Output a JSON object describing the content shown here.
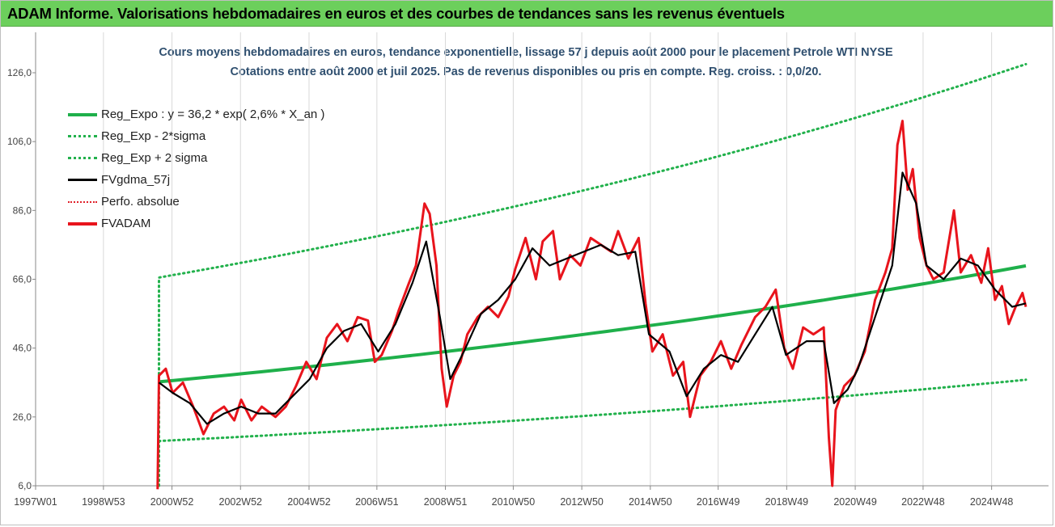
{
  "banner": {
    "title": "ADAM Informe. Valorisations hebdomadaires en euros et des courbes de tendances sans les revenus éventuels"
  },
  "colors": {
    "banner_bg": "#6ccf5c",
    "reg_expo": "#1fb04b",
    "sigma": "#22b14c",
    "fvgdma": "#000000",
    "perfo": "#e0202a",
    "fvadam": "#e8141c",
    "grid": "#d9d9d9"
  },
  "chart_data": {
    "type": "line",
    "title": "Cours moyens hebdomadaires en euros, tendance exponentielle, lissage 57 j depuis août 2000 pour le placement Petrole WTI NYSE",
    "subtitle": "Cotations entre août 2000 et juil 2025. Pas de revenus disponibles ou pris en compte. Reg. croiss. : 0,0/20.",
    "xlabel": "",
    "ylabel": "",
    "ylim": [
      6,
      126
    ],
    "yticks": [
      "6,0",
      "26,0",
      "46,0",
      "66,0",
      "86,0",
      "106,0",
      "126,0"
    ],
    "xlim": [
      1997.0,
      2025.9
    ],
    "xticks": [
      {
        "t": 1997.0,
        "label": "1997W01"
      },
      {
        "t": 1998.98,
        "label": "1998W53"
      },
      {
        "t": 2000.98,
        "label": "2000W52"
      },
      {
        "t": 2002.98,
        "label": "2002W52"
      },
      {
        "t": 2004.98,
        "label": "2004W52"
      },
      {
        "t": 2006.96,
        "label": "2006W51"
      },
      {
        "t": 2008.96,
        "label": "2008W51"
      },
      {
        "t": 2010.94,
        "label": "2010W50"
      },
      {
        "t": 2012.94,
        "label": "2012W50"
      },
      {
        "t": 2014.94,
        "label": "2014W50"
      },
      {
        "t": 2016.92,
        "label": "2016W49"
      },
      {
        "t": 2018.92,
        "label": "2018W49"
      },
      {
        "t": 2020.92,
        "label": "2020W49"
      },
      {
        "t": 2022.9,
        "label": "2022W48"
      },
      {
        "t": 2024.9,
        "label": "2024W48"
      }
    ],
    "grid": "vertical",
    "legend_position": "top-left",
    "series": [
      {
        "name": "Reg_Expo : y = 36,2 * exp( 2,6% *  X_an )",
        "key": "reg",
        "style": "solid-thick",
        "points": [
          [
            2000.6,
            36.2
          ],
          [
            2025.9,
            69.9
          ]
        ]
      },
      {
        "name": "Reg_Exp - 2*sigma",
        "key": "lo",
        "style": "dotted",
        "points": [
          [
            2000.6,
            19.0
          ],
          [
            2025.9,
            36.8
          ]
        ]
      },
      {
        "name": "Reg_Exp + 2 sigma",
        "key": "hi",
        "style": "dotted",
        "points": [
          [
            2000.6,
            6.0
          ],
          [
            2000.6,
            66.5
          ],
          [
            2025.9,
            128.5
          ]
        ]
      },
      {
        "name": "FVgdma_57j",
        "key": "gdma",
        "style": "solid-thin",
        "points": [
          [
            2000.6,
            36
          ],
          [
            2001.0,
            33
          ],
          [
            2001.5,
            30
          ],
          [
            2002.0,
            24
          ],
          [
            2002.5,
            27
          ],
          [
            2003.0,
            29
          ],
          [
            2003.5,
            27
          ],
          [
            2004.0,
            27
          ],
          [
            2004.5,
            32
          ],
          [
            2005.0,
            37
          ],
          [
            2005.5,
            46
          ],
          [
            2006.0,
            51
          ],
          [
            2006.5,
            53
          ],
          [
            2007.0,
            45
          ],
          [
            2007.5,
            53
          ],
          [
            2008.0,
            65
          ],
          [
            2008.4,
            77
          ],
          [
            2008.8,
            55
          ],
          [
            2009.1,
            37
          ],
          [
            2009.5,
            45
          ],
          [
            2010.0,
            56
          ],
          [
            2010.5,
            60
          ],
          [
            2011.0,
            66
          ],
          [
            2011.5,
            75
          ],
          [
            2012.0,
            70
          ],
          [
            2012.5,
            72
          ],
          [
            2013.0,
            74
          ],
          [
            2013.5,
            76
          ],
          [
            2014.0,
            73
          ],
          [
            2014.5,
            74
          ],
          [
            2014.9,
            50
          ],
          [
            2015.5,
            45
          ],
          [
            2016.0,
            32
          ],
          [
            2016.5,
            40
          ],
          [
            2017.0,
            44
          ],
          [
            2017.5,
            42
          ],
          [
            2018.0,
            50
          ],
          [
            2018.5,
            58
          ],
          [
            2018.9,
            44
          ],
          [
            2019.5,
            48
          ],
          [
            2020.0,
            48
          ],
          [
            2020.3,
            30
          ],
          [
            2020.7,
            34
          ],
          [
            2021.0,
            40
          ],
          [
            2021.5,
            55
          ],
          [
            2022.0,
            70
          ],
          [
            2022.3,
            97
          ],
          [
            2022.7,
            88
          ],
          [
            2023.0,
            70
          ],
          [
            2023.5,
            66
          ],
          [
            2024.0,
            72
          ],
          [
            2024.5,
            70
          ],
          [
            2025.0,
            63
          ],
          [
            2025.5,
            58
          ],
          [
            2025.9,
            59
          ]
        ]
      },
      {
        "name": "Perfo. absolue",
        "key": "perfo",
        "style": "dotted",
        "points": []
      },
      {
        "name": "FVADAM",
        "key": "adam",
        "style": "solid-red",
        "points": [
          [
            2000.56,
            5
          ],
          [
            2000.6,
            38
          ],
          [
            2000.8,
            40
          ],
          [
            2001.0,
            33
          ],
          [
            2001.3,
            36
          ],
          [
            2001.6,
            29
          ],
          [
            2001.9,
            21
          ],
          [
            2002.2,
            27
          ],
          [
            2002.5,
            29
          ],
          [
            2002.8,
            25
          ],
          [
            2003.0,
            31
          ],
          [
            2003.3,
            25
          ],
          [
            2003.6,
            29
          ],
          [
            2004.0,
            26
          ],
          [
            2004.3,
            29
          ],
          [
            2004.6,
            35
          ],
          [
            2004.9,
            42
          ],
          [
            2005.2,
            37
          ],
          [
            2005.5,
            49
          ],
          [
            2005.8,
            53
          ],
          [
            2006.1,
            48
          ],
          [
            2006.4,
            55
          ],
          [
            2006.7,
            54
          ],
          [
            2006.9,
            42
          ],
          [
            2007.1,
            44
          ],
          [
            2007.4,
            51
          ],
          [
            2007.6,
            57
          ],
          [
            2007.9,
            65
          ],
          [
            2008.1,
            70
          ],
          [
            2008.35,
            88
          ],
          [
            2008.5,
            85
          ],
          [
            2008.7,
            70
          ],
          [
            2008.85,
            40
          ],
          [
            2009.0,
            29
          ],
          [
            2009.2,
            38
          ],
          [
            2009.4,
            42
          ],
          [
            2009.6,
            50
          ],
          [
            2009.9,
            55
          ],
          [
            2010.2,
            58
          ],
          [
            2010.5,
            55
          ],
          [
            2010.8,
            61
          ],
          [
            2011.0,
            69
          ],
          [
            2011.3,
            78
          ],
          [
            2011.6,
            66
          ],
          [
            2011.8,
            77
          ],
          [
            2012.1,
            80
          ],
          [
            2012.3,
            66
          ],
          [
            2012.6,
            73
          ],
          [
            2012.9,
            70
          ],
          [
            2013.2,
            78
          ],
          [
            2013.5,
            76
          ],
          [
            2013.8,
            74
          ],
          [
            2014.0,
            80
          ],
          [
            2014.3,
            72
          ],
          [
            2014.6,
            78
          ],
          [
            2014.8,
            59
          ],
          [
            2015.0,
            45
          ],
          [
            2015.3,
            50
          ],
          [
            2015.6,
            38
          ],
          [
            2015.9,
            42
          ],
          [
            2016.1,
            26
          ],
          [
            2016.4,
            38
          ],
          [
            2016.7,
            42
          ],
          [
            2017.0,
            48
          ],
          [
            2017.3,
            40
          ],
          [
            2017.6,
            47
          ],
          [
            2018.0,
            55
          ],
          [
            2018.3,
            58
          ],
          [
            2018.6,
            63
          ],
          [
            2018.85,
            46
          ],
          [
            2019.1,
            40
          ],
          [
            2019.4,
            52
          ],
          [
            2019.7,
            50
          ],
          [
            2020.0,
            52
          ],
          [
            2020.15,
            20
          ],
          [
            2020.25,
            6
          ],
          [
            2020.35,
            28
          ],
          [
            2020.6,
            35
          ],
          [
            2020.9,
            38
          ],
          [
            2021.2,
            45
          ],
          [
            2021.5,
            60
          ],
          [
            2021.8,
            68
          ],
          [
            2022.0,
            75
          ],
          [
            2022.15,
            105
          ],
          [
            2022.3,
            112
          ],
          [
            2022.45,
            92
          ],
          [
            2022.6,
            98
          ],
          [
            2022.8,
            78
          ],
          [
            2023.0,
            70
          ],
          [
            2023.2,
            66
          ],
          [
            2023.5,
            68
          ],
          [
            2023.8,
            86
          ],
          [
            2024.0,
            68
          ],
          [
            2024.3,
            73
          ],
          [
            2024.6,
            65
          ],
          [
            2024.8,
            75
          ],
          [
            2025.0,
            60
          ],
          [
            2025.2,
            64
          ],
          [
            2025.4,
            53
          ],
          [
            2025.6,
            58
          ],
          [
            2025.8,
            62
          ],
          [
            2025.9,
            58
          ]
        ]
      }
    ]
  }
}
